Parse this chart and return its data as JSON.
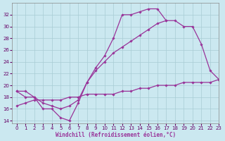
{
  "xlabel": "Windchill (Refroidissement éolien,°C)",
  "bg_color": "#cbe8f0",
  "grid_color": "#a8ccd4",
  "line_color": "#993399",
  "ylim": [
    13.5,
    34
  ],
  "xlim": [
    -0.5,
    23
  ],
  "yticks": [
    14,
    16,
    18,
    20,
    22,
    24,
    26,
    28,
    30,
    32
  ],
  "xticks": [
    0,
    1,
    2,
    3,
    4,
    5,
    6,
    7,
    8,
    9,
    10,
    11,
    12,
    13,
    14,
    15,
    16,
    17,
    18,
    19,
    20,
    21,
    22,
    23
  ],
  "line1_y": [
    19.0,
    19.0,
    18.0,
    16.0,
    16.0,
    14.5,
    14.0,
    17.0,
    20.5,
    23.0,
    25.0,
    28.0,
    32.0,
    32.0,
    32.5,
    33.0,
    33.0,
    31.0,
    null,
    null,
    null,
    null,
    null,
    null
  ],
  "line2_y": [
    19.0,
    18.0,
    18.0,
    17.0,
    16.5,
    16.0,
    16.5,
    17.5,
    20.5,
    22.5,
    24.0,
    25.5,
    26.5,
    27.5,
    28.5,
    29.5,
    30.5,
    31.0,
    31.0,
    30.0,
    30.0,
    27.0,
    22.5,
    21.0
  ],
  "line3_y": [
    16.5,
    17.0,
    17.5,
    17.5,
    17.5,
    17.5,
    18.0,
    18.0,
    18.5,
    18.5,
    18.5,
    18.5,
    19.0,
    19.0,
    19.5,
    19.5,
    20.0,
    20.0,
    20.0,
    20.5,
    20.5,
    20.5,
    20.5,
    21.0
  ]
}
